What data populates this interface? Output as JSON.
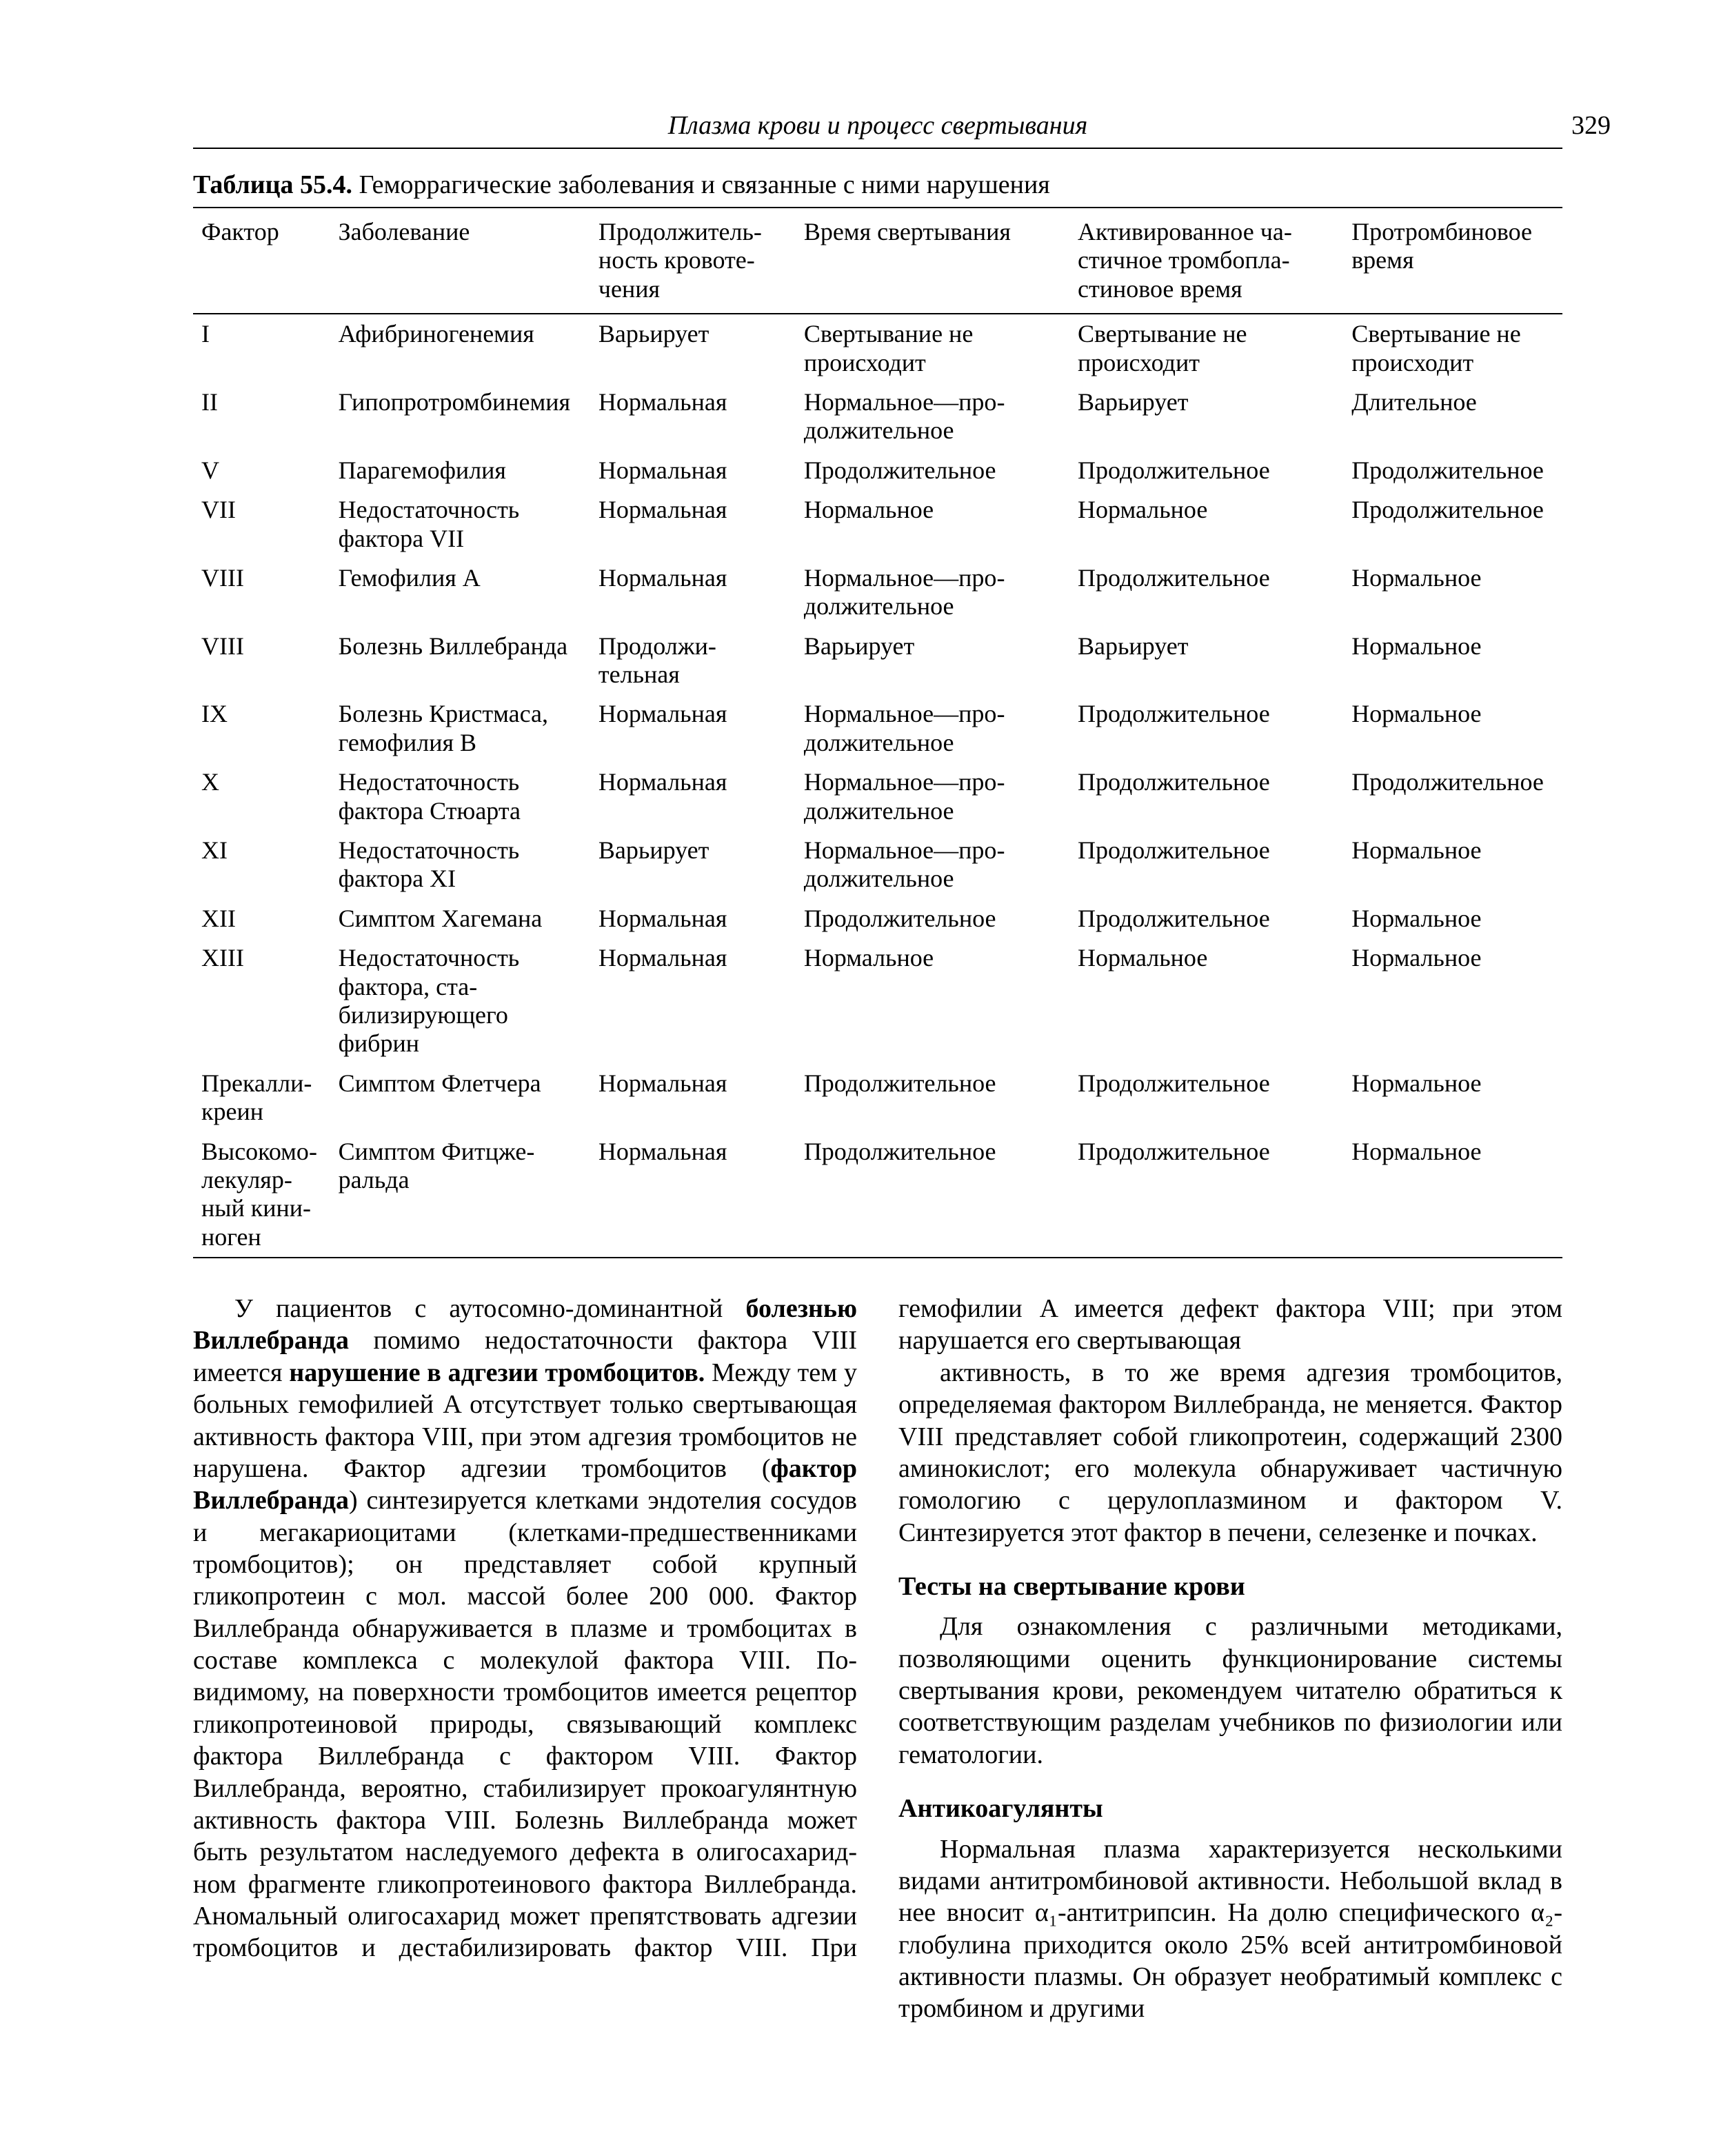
{
  "page": {
    "running_head": "Плазма крови и процесс свертывания",
    "number": "329"
  },
  "table": {
    "caption_prefix": "Таблица 55.4.",
    "caption_rest": " Геморрагические заболевания и связанные с ними нарушения",
    "columns": [
      "Фактор",
      "Заболевание",
      "Продолжитель­ность кровоте­чения",
      "Время свертывания",
      "Активированное ча­стичное тромбопла­стиновое время",
      "Протромбиновое время"
    ],
    "rows": [
      [
        "I",
        "Афибриногенемия",
        "Варьирует",
        "Свертывание не происходит",
        "Свертывание не происходит",
        "Свертывание не про­исходит"
      ],
      [
        "II",
        "Гипопротромбине­мия",
        "Нормальная",
        "Нормальное—про­должительное",
        "Варьирует",
        "Длительное"
      ],
      [
        "V",
        "Парагемофилия",
        "Нормальная",
        "Продолжительное",
        "Продолжительное",
        "Продолжительное"
      ],
      [
        "VII",
        "Недостаточность фактора VII",
        "Нормальная",
        "Нормальное",
        "Нормальное",
        "Продолжительное"
      ],
      [
        "VIII",
        "Гемофилия A",
        "Нормальная",
        "Нормальное—про­должительное",
        "Продолжительное",
        "Нормальное"
      ],
      [
        "VIII",
        "Болезнь Вилле­бранда",
        "Продолжи­тельная",
        "Варьирует",
        "Варьирует",
        "Нормальное"
      ],
      [
        "IX",
        "Болезнь Кристма­са, гемофи­лия B",
        "Нормальная",
        "Нормальное—про­должительное",
        "Продолжительное",
        "Нормальное"
      ],
      [
        "X",
        "Недостаточность фактора Стюа­рта",
        "Нормальная",
        "Нормальное—про­должительное",
        "Продолжительное",
        "Продолжительное"
      ],
      [
        "XI",
        "Недостаточность фактора XI",
        "Варьирует",
        "Нормальное—про­должительное",
        "Продолжительное",
        "Нормальное"
      ],
      [
        "XII",
        "Симптом Хагемана",
        "Нормальная",
        "Продолжительное",
        "Продолжительное",
        "Нормальное"
      ],
      [
        "XIII",
        "Недостаточность фактора, ста­билизирующе­го фибрин",
        "Нормальная",
        "Нормальное",
        "Нормальное",
        "Нормальное"
      ],
      [
        "Прекалли­креин",
        "Симптом Флетчера",
        "Нормальная",
        "Продолжительное",
        "Продолжительное",
        "Нормальное"
      ],
      [
        "Высокомо­лекуляр­ный кини­ноген",
        "Симптом Фитцже­ральда",
        "Нормальная",
        "Продолжительное",
        "Продолжительное",
        "Нормальное"
      ]
    ]
  },
  "body": {
    "p1_a": "У пациентов с аутосомно-доминантной ",
    "p1_b": "болезнью Виллебранда",
    "p1_c": " помимо недостаточности фактора VIII имеется ",
    "p1_d": "нарушение в адгезии тромбоцитов.",
    "p1_e": " Между тем у больных гемофилией A отсутствует только свертывающая активность фактора VIII, при этом адгезия тромбоцитов не нарушена. Фактор адгезии тромбоцитов (",
    "p1_f": "фактор Виллебранда",
    "p1_g": ") синтезируется клетками эндотелия сосудов и мегакариоцитами (клетками-предшественниками тромбоцитов); он представляет собой крупный гликопротеин с мол. массой более 200 000. Фактор Виллебранда обнару­живается в плазме и тромбоцитах в составе комплек­са с молекулой фактора VIII. По-видимому, на по­верхности тромбоцитов имеется рецептор гликопро­теиновой природы, связывающий комплекс фактора Виллебранда с фактором VIII. Фактор Виллебранда, вероятно, стабилизирует прокоагулянтную активно­сть фактора VIII. Болезнь Виллебранда может быть результатом наследуемого дефекта в олигосахарид­ном фрагменте гликопротеинового фактора Вилле­бранда. Аномальный олигосахарид может препят­ствовать адгезии тромбоцитов и дестабилизировать фактор VIII. При гемофилии A имеется дефект фак­тора VIII; при этом нарушается его свертывающая",
    "p2": "активность, в то же время адгезия тромбоцитов, определяемая фактором Виллебранда, не меняется. Фактор VIII представляет собой гликопротеин, со­держащий 2300 аминокислот; его молекула обнару­живает частичную гомологию с церулоплазмином и фактором V. Синтезируется этот фактор в печени, селезенке и почках.",
    "h1": "Тесты на свертывание крови",
    "p3": "Для ознакомления с различными методиками, позволяющими оценить функционирование системы свертывания крови, рекомендуем читателю обратить­ся к соответствующим разделам учебников по фи­зиологии или гематологии.",
    "h2": "Антикоагулянты",
    "p4": "Нормальная плазма характеризуется нескольки­ми видами антитромбиновой активности. Неболь­шой вклад в нее вносит α₁-антитрипсин. На долю специфического α₂-глобулина приходится около 25% всей антитромбиновой активности плазмы. Он обра­зует необратимый комплекс с тромбином и другими"
  }
}
